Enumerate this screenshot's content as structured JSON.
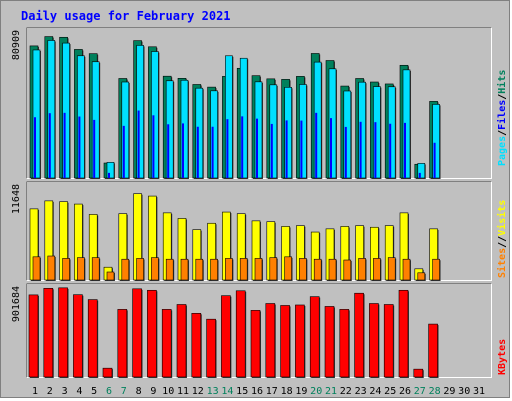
{
  "chart_data": {
    "type": "bar",
    "title": "Daily usage for February 2021",
    "categories": [
      "1",
      "2",
      "3",
      "4",
      "5",
      "6",
      "7",
      "8",
      "9",
      "10",
      "11",
      "12",
      "13",
      "14",
      "15",
      "16",
      "17",
      "18",
      "19",
      "20",
      "21",
      "22",
      "23",
      "24",
      "25",
      "26",
      "27",
      "28",
      "29",
      "30",
      "31"
    ],
    "weekend_days": [
      "6",
      "7",
      "13",
      "14",
      "20",
      "21",
      "27",
      "28"
    ],
    "panels": [
      {
        "name": "top",
        "max_label": "80909",
        "ylim": [
          0,
          80909
        ],
        "legend": [
          "Pages",
          "Files",
          "Hits"
        ],
        "series": [
          {
            "name": "Hits",
            "color": "#00805c",
            "values": [
              75000,
              80300,
              79900,
              73000,
              70600,
              8500,
              56500,
              78000,
              74500,
              57800,
              56600,
              53100,
              51600,
              57700,
              62300,
              58100,
              56300,
              56000,
              57700,
              70700,
              66700,
              52200,
              56500,
              54500,
              53400,
              64000,
              7800,
              43500,
              0,
              0,
              0
            ]
          },
          {
            "name": "Files",
            "color": "#0000ff",
            "values": [
              34500,
              36800,
              37000,
              34900,
              33000,
              2900,
              29600,
              38300,
              35600,
              30500,
              31000,
              29100,
              29100,
              33400,
              35000,
              33700,
              30700,
              32700,
              32600,
              37000,
              34000,
              29000,
              31900,
              31700,
              30800,
              31300,
              2900,
              20000,
              0,
              0,
              0
            ]
          },
          {
            "name": "Pages",
            "color": "#00e0ff",
            "values": [
              72700,
              78100,
              76600,
              69400,
              66000,
              8900,
              54500,
              75300,
              71800,
              55200,
              55500,
              51000,
              49500,
              69400,
              68000,
              54600,
              52900,
              51500,
              53100,
              65800,
              62000,
              49400,
              54400,
              51900,
              51800,
              61400,
              8300,
              41800,
              0,
              0,
              0
            ]
          }
        ]
      },
      {
        "name": "middle",
        "max_label": "11648",
        "ylim": [
          0,
          11648
        ],
        "legend": [
          "Sites",
          "/",
          "Visits"
        ],
        "series": [
          {
            "name": "Visits",
            "color": "#ffff00",
            "values": [
              8900,
              9900,
              9800,
              9500,
              8200,
              1600,
              8300,
              10800,
              10500,
              8400,
              7700,
              6300,
              7100,
              8500,
              8300,
              7400,
              7300,
              6700,
              6800,
              6000,
              6400,
              6700,
              6800,
              6600,
              6800,
              8400,
              1400,
              6400,
              0,
              0,
              0
            ]
          },
          {
            "name": "Sites",
            "color": "#ff8000",
            "values": [
              2900,
              3000,
              2700,
              2800,
              2800,
              1000,
              2600,
              2700,
              2800,
              2600,
              2600,
              2600,
              2600,
              2700,
              2700,
              2700,
              2800,
              2900,
              2700,
              2600,
              2600,
              2500,
              2700,
              2700,
              2800,
              2600,
              900,
              2600,
              0,
              0,
              0
            ]
          }
        ]
      },
      {
        "name": "bottom",
        "max_label": "901684",
        "ylim": [
          0,
          901684
        ],
        "legend": [
          "KBytes"
        ],
        "series": [
          {
            "name": "KBytes",
            "color": "#ff0000",
            "values": [
              838000,
              905000,
              910000,
              840000,
              790000,
              90000,
              690000,
              900000,
              885000,
              690000,
              740000,
              650000,
              590000,
              830000,
              880000,
              680000,
              750000,
              730000,
              735000,
              820000,
              720000,
              690000,
              855000,
              750000,
              740000,
              885000,
              80000,
              540000,
              0,
              0,
              0
            ]
          }
        ]
      }
    ]
  },
  "colors": {
    "background": "#c0c0c0",
    "title": "#0000ff",
    "weekday": "#000000",
    "weekend": "#00805c"
  }
}
